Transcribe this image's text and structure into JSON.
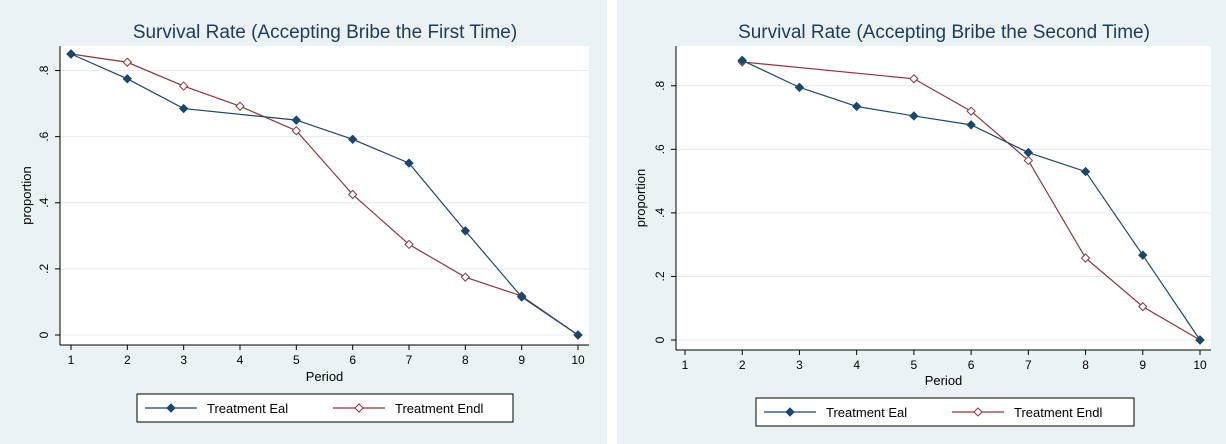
{
  "colors": {
    "panel_bg": "#eaf2f3",
    "plot_bg": "#ffffff",
    "grid": "#e4ecee",
    "title": "#1e3c5a",
    "series_eal": "#1a476f",
    "series_endl": "#90353b"
  },
  "chart_data": [
    {
      "type": "line",
      "title": "Survival Rate (Accepting Bribe the First Time)",
      "xlabel": "Period",
      "ylabel": "proportion",
      "xlim": [
        1,
        10
      ],
      "ylim": [
        0,
        0.85
      ],
      "xticks": [
        "1",
        "2",
        "3",
        "4",
        "5",
        "6",
        "7",
        "8",
        "9",
        "10"
      ],
      "yticks": [
        {
          "value": 0,
          "label": "0"
        },
        {
          "value": 0.2,
          "label": ".2"
        },
        {
          "value": 0.4,
          "label": ".4"
        },
        {
          "value": 0.6,
          "label": ".6"
        },
        {
          "value": 0.8,
          "label": ".8"
        }
      ],
      "grid": true,
      "legend_position": "bottom",
      "series": [
        {
          "name": "Treatment Eal",
          "marker": "diamond-filled",
          "x": [
            1,
            2,
            3,
            4,
            5,
            6,
            7,
            8,
            9,
            10
          ],
          "y": [
            0.85,
            0.775,
            0.685,
            null,
            0.65,
            0.592,
            0.52,
            0.315,
            0.115,
            0.0
          ]
        },
        {
          "name": "Treatment Endl",
          "marker": "diamond-hollow",
          "x": [
            1,
            2,
            3,
            4,
            5,
            6,
            7,
            8,
            9,
            10
          ],
          "y": [
            0.85,
            0.825,
            0.753,
            0.692,
            0.618,
            0.425,
            0.274,
            0.175,
            0.118,
            0.0
          ]
        }
      ]
    },
    {
      "type": "line",
      "title": "Survival Rate (Accepting Bribe the Second Time)",
      "xlabel": "Period",
      "ylabel": "proportion",
      "xlim": [
        1,
        10
      ],
      "ylim": [
        0,
        0.9
      ],
      "xticks": [
        "1",
        "2",
        "3",
        "4",
        "5",
        "6",
        "7",
        "8",
        "9",
        "10"
      ],
      "yticks": [
        {
          "value": 0,
          "label": "0"
        },
        {
          "value": 0.2,
          "label": ".2"
        },
        {
          "value": 0.4,
          "label": ".4"
        },
        {
          "value": 0.6,
          "label": ".6"
        },
        {
          "value": 0.8,
          "label": ".8"
        }
      ],
      "grid": true,
      "legend_position": "bottom",
      "series": [
        {
          "name": "Treatment Eal",
          "marker": "diamond-filled",
          "x": [
            2,
            3,
            4,
            5,
            6,
            7,
            8,
            9,
            10
          ],
          "y": [
            0.88,
            0.795,
            0.735,
            0.705,
            0.677,
            0.59,
            0.53,
            0.267,
            0.0
          ]
        },
        {
          "name": "Treatment Endl",
          "marker": "diamond-hollow",
          "x": [
            2,
            5,
            6,
            7,
            8,
            9,
            10
          ],
          "y": [
            0.875,
            0.822,
            0.72,
            0.565,
            0.258,
            0.105,
            0.0
          ]
        }
      ]
    }
  ]
}
